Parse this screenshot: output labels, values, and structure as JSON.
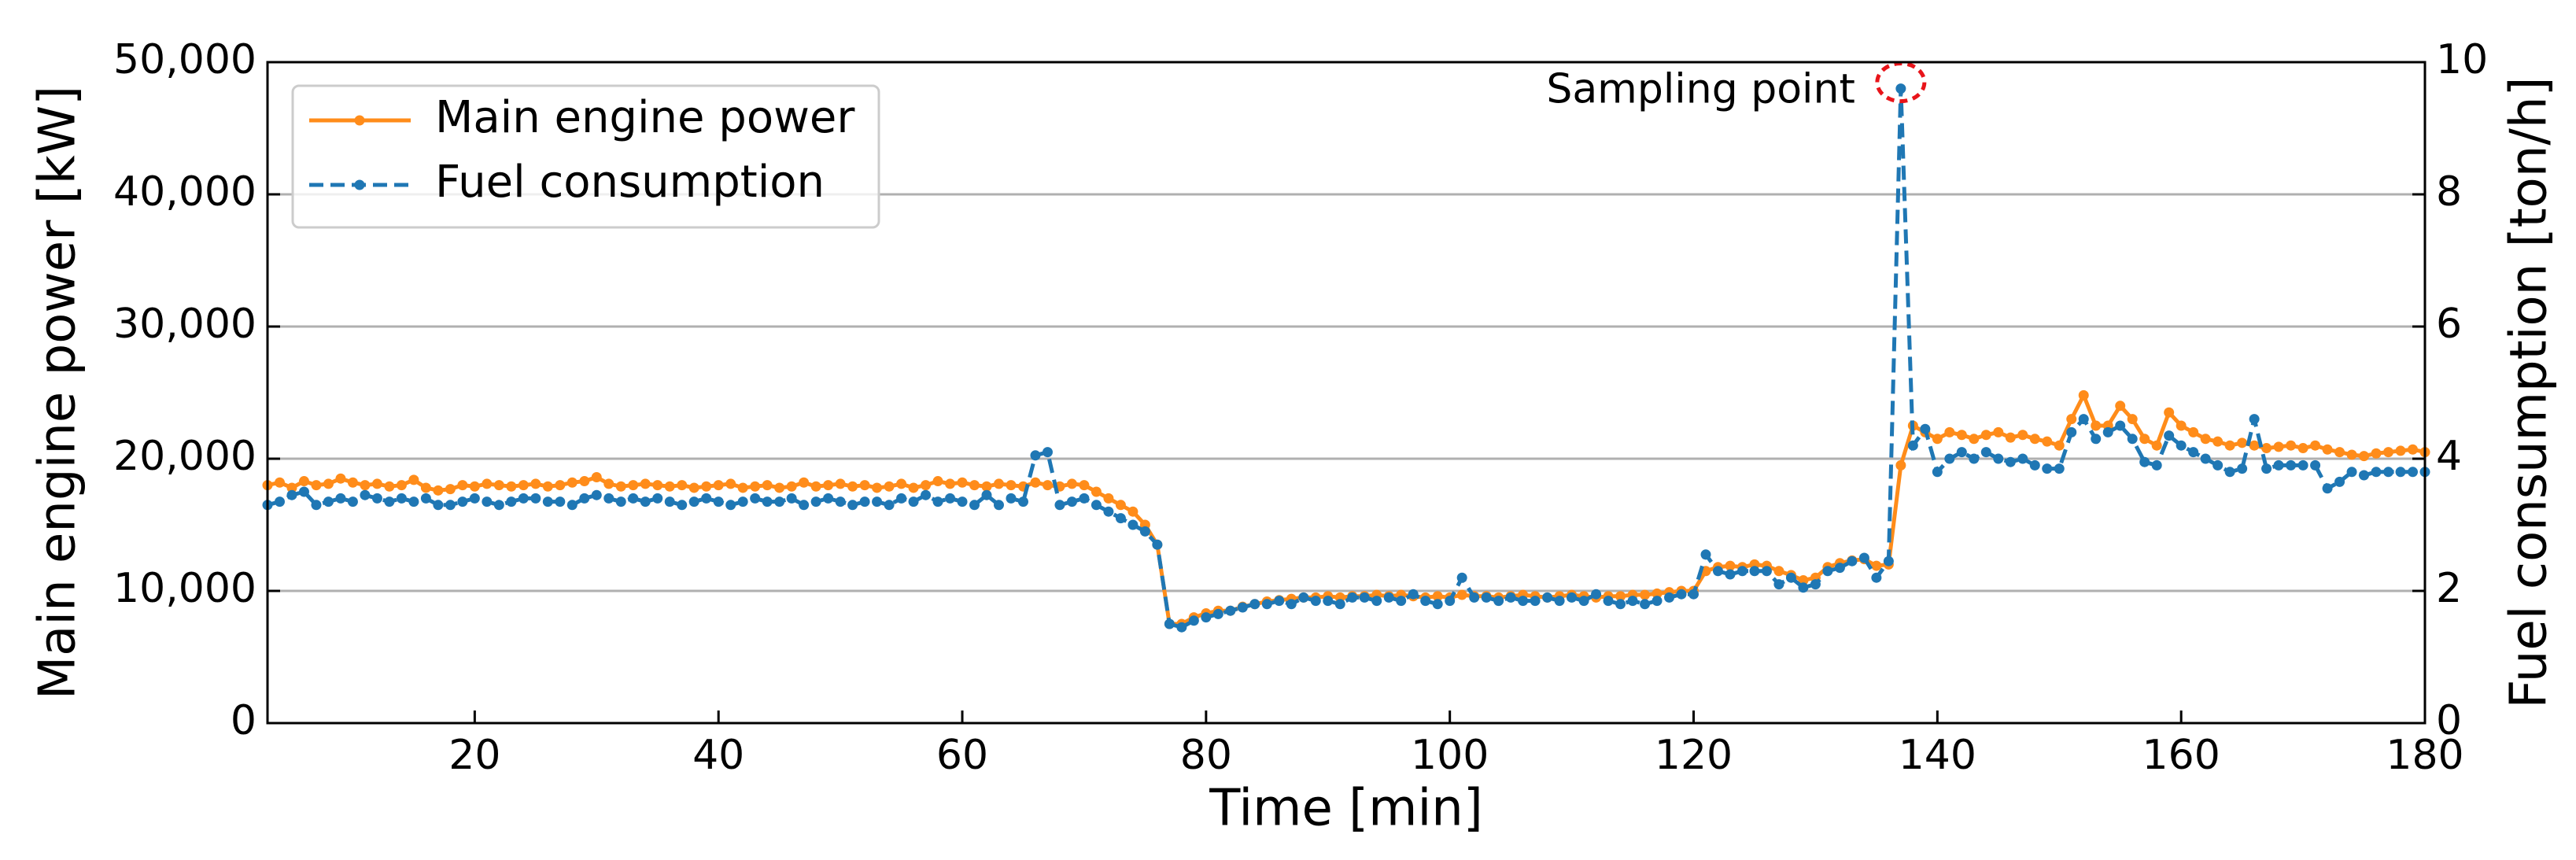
{
  "chart_data": {
    "type": "line",
    "xlabel": "Time [min]",
    "ylabel": "Main engine power [kW]",
    "y2label": "Fuel consumption [ton/h]",
    "annotation": "Sampling point",
    "legend": "upper left",
    "grid": true,
    "xlim": [
      3,
      180
    ],
    "xticks": [
      20,
      40,
      60,
      80,
      100,
      120,
      140,
      160,
      180
    ],
    "ylim": [
      0,
      50000
    ],
    "yticks": [
      0,
      {
        "value": 10000,
        "label": "10,000"
      },
      {
        "value": 20000,
        "label": "20,000"
      },
      {
        "value": 30000,
        "label": "30,000"
      },
      {
        "value": 40000,
        "label": "40,000"
      },
      {
        "value": 50000,
        "label": "50,000"
      }
    ],
    "y2lim": [
      0,
      10
    ],
    "y2ticks": [
      0,
      2,
      4,
      6,
      8,
      10
    ],
    "x": [
      3,
      4,
      5,
      6,
      7,
      8,
      9,
      10,
      11,
      12,
      13,
      14,
      15,
      16,
      17,
      18,
      19,
      20,
      21,
      22,
      23,
      24,
      25,
      26,
      27,
      28,
      29,
      30,
      31,
      32,
      33,
      34,
      35,
      36,
      37,
      38,
      39,
      40,
      41,
      42,
      43,
      44,
      45,
      46,
      47,
      48,
      49,
      50,
      51,
      52,
      53,
      54,
      55,
      56,
      57,
      58,
      59,
      60,
      61,
      62,
      63,
      64,
      65,
      66,
      67,
      68,
      69,
      70,
      71,
      72,
      73,
      74,
      75,
      76,
      77,
      78,
      79,
      80,
      81,
      82,
      83,
      84,
      85,
      86,
      87,
      88,
      89,
      90,
      91,
      92,
      93,
      94,
      95,
      96,
      97,
      98,
      99,
      100,
      101,
      102,
      103,
      104,
      105,
      106,
      107,
      108,
      109,
      110,
      111,
      112,
      113,
      114,
      115,
      116,
      117,
      118,
      119,
      120,
      121,
      122,
      123,
      124,
      125,
      126,
      127,
      128,
      129,
      130,
      131,
      132,
      133,
      134,
      135,
      136,
      137,
      138,
      139,
      140,
      141,
      142,
      143,
      144,
      145,
      146,
      147,
      148,
      149,
      150,
      151,
      152,
      153,
      154,
      155,
      156,
      157,
      158,
      159,
      160,
      161,
      162,
      163,
      164,
      165,
      166,
      167,
      168,
      169,
      170,
      171,
      172,
      173,
      174,
      175,
      176,
      177,
      178,
      179,
      180
    ],
    "series": [
      {
        "name": "Main engine power",
        "color": "#ff8c1a",
        "dash": false,
        "values": [
          18000,
          18200,
          17800,
          18300,
          18000,
          18100,
          18500,
          18200,
          18000,
          18100,
          17900,
          18000,
          18400,
          17800,
          17600,
          17700,
          18000,
          17900,
          18100,
          18000,
          17900,
          18000,
          18100,
          17900,
          18000,
          18200,
          18300,
          18600,
          18100,
          17900,
          18000,
          18100,
          18000,
          17900,
          18000,
          17800,
          17900,
          18000,
          18100,
          17800,
          17900,
          18000,
          17800,
          17900,
          18200,
          17900,
          18000,
          18100,
          17900,
          18000,
          17800,
          17900,
          18100,
          17800,
          18000,
          18300,
          18100,
          18200,
          18000,
          17900,
          18100,
          18000,
          17900,
          18200,
          18000,
          17900,
          18100,
          18000,
          17500,
          17000,
          16500,
          16000,
          15000,
          13500,
          7500,
          7500,
          8000,
          8300,
          8500,
          8500,
          8800,
          9000,
          9200,
          9300,
          9400,
          9500,
          9500,
          9600,
          9500,
          9600,
          9600,
          9700,
          9600,
          9700,
          9600,
          9500,
          9600,
          9500,
          9700,
          9600,
          9600,
          9500,
          9600,
          9700,
          9600,
          9500,
          9600,
          9700,
          9600,
          9500,
          9600,
          9600,
          9700,
          9700,
          9800,
          9900,
          10000,
          10000,
          11500,
          11800,
          11900,
          11800,
          12000,
          11900,
          11500,
          11200,
          10800,
          11000,
          11800,
          12100,
          12300,
          12400,
          11900,
          12000,
          19500,
          22500,
          22000,
          21500,
          22000,
          21800,
          21500,
          21800,
          22000,
          21600,
          21800,
          21500,
          21300,
          21000,
          23000,
          24800,
          22500,
          22500,
          24000,
          23000,
          21500,
          21000,
          23500,
          22500,
          22000,
          21500,
          21300,
          21000,
          21200,
          21000,
          20800,
          20900,
          21000,
          20800,
          21000,
          20700,
          20500,
          20300,
          20200,
          20400,
          20500,
          20600,
          20700,
          20500
        ]
      },
      {
        "name": "Fuel consumption",
        "color": "#1f77b4",
        "dash": true,
        "axis": "y2",
        "values": [
          3.3,
          3.35,
          3.45,
          3.5,
          3.3,
          3.35,
          3.4,
          3.35,
          3.45,
          3.4,
          3.35,
          3.4,
          3.35,
          3.4,
          3.3,
          3.3,
          3.35,
          3.4,
          3.35,
          3.3,
          3.35,
          3.4,
          3.4,
          3.35,
          3.35,
          3.3,
          3.4,
          3.45,
          3.4,
          3.35,
          3.4,
          3.35,
          3.4,
          3.35,
          3.3,
          3.35,
          3.4,
          3.35,
          3.3,
          3.35,
          3.4,
          3.35,
          3.35,
          3.4,
          3.3,
          3.35,
          3.4,
          3.35,
          3.3,
          3.35,
          3.35,
          3.3,
          3.4,
          3.35,
          3.45,
          3.35,
          3.4,
          3.35,
          3.3,
          3.45,
          3.3,
          3.4,
          3.35,
          4.05,
          4.1,
          3.3,
          3.35,
          3.4,
          3.3,
          3.2,
          3.1,
          3.0,
          2.9,
          2.7,
          1.5,
          1.45,
          1.55,
          1.6,
          1.65,
          1.7,
          1.75,
          1.8,
          1.8,
          1.85,
          1.8,
          1.9,
          1.85,
          1.85,
          1.8,
          1.9,
          1.9,
          1.85,
          1.9,
          1.85,
          1.95,
          1.85,
          1.8,
          1.85,
          2.2,
          1.9,
          1.9,
          1.85,
          1.9,
          1.85,
          1.85,
          1.9,
          1.85,
          1.9,
          1.85,
          1.95,
          1.85,
          1.8,
          1.85,
          1.8,
          1.85,
          1.9,
          1.95,
          1.95,
          2.55,
          2.3,
          2.25,
          2.3,
          2.3,
          2.3,
          2.1,
          2.2,
          2.05,
          2.1,
          2.3,
          2.35,
          2.45,
          2.5,
          2.2,
          2.45,
          9.6,
          4.2,
          4.45,
          3.8,
          4.0,
          4.1,
          4.0,
          4.1,
          4.0,
          3.95,
          4.0,
          3.9,
          3.85,
          3.85,
          4.4,
          4.6,
          4.3,
          4.4,
          4.5,
          4.3,
          3.95,
          3.9,
          4.35,
          4.2,
          4.1,
          4.0,
          3.9,
          3.8,
          3.85,
          4.6,
          3.85,
          3.9,
          3.9,
          3.9,
          3.9,
          3.55,
          3.65,
          3.8,
          3.75,
          3.8,
          3.8,
          3.8,
          3.8,
          3.8
        ]
      }
    ],
    "annotation_index": 134
  }
}
